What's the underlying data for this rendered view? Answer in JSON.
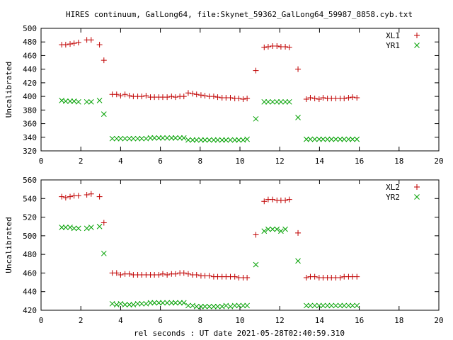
{
  "title": "HIRES continuum, GalLong64, file:Skynet_59362_GalLong64_59987_8858.cyb.txt",
  "xlabel": "rel seconds : UT date 2021-05-28T02:40:59.310",
  "colors": {
    "plus": "#c00000",
    "cross": "#00a000"
  },
  "chart_data": [
    {
      "type": "scatter",
      "ylabel": "Uncalibrated",
      "xlim": [
        0,
        20
      ],
      "ylim": [
        320,
        500
      ],
      "xticks": [
        0,
        2,
        4,
        6,
        8,
        10,
        12,
        14,
        16,
        18,
        20
      ],
      "yticks": [
        320,
        340,
        360,
        380,
        400,
        420,
        440,
        460,
        480,
        500
      ],
      "x": [
        0.82,
        1.04,
        1.24,
        1.46,
        1.66,
        1.88,
        2.1,
        2.3,
        2.52,
        2.72,
        2.94,
        3.16,
        3.38,
        3.58,
        3.8,
        4.0,
        4.22,
        4.44,
        4.64,
        4.86,
        5.06,
        5.28,
        5.5,
        5.7,
        5.92,
        6.12,
        6.34,
        6.56,
        6.76,
        6.98,
        7.18,
        7.4,
        7.62,
        7.82,
        8.04,
        8.24,
        8.46,
        8.68,
        8.88,
        9.1,
        9.3,
        9.52,
        9.74,
        9.94,
        10.16,
        10.36,
        10.58,
        10.8,
        11.0,
        11.22,
        11.42,
        11.64,
        11.86,
        12.06,
        12.28,
        12.48,
        12.7,
        12.92,
        13.12,
        13.34,
        13.54,
        13.76,
        13.98,
        14.18,
        14.4,
        14.6,
        14.82,
        15.04,
        15.24,
        15.46,
        15.66,
        15.88,
        16.1,
        16.3,
        16.52,
        16.72,
        16.94,
        17.16,
        17.36,
        17.58,
        17.78,
        18.0,
        18.22,
        18.42,
        18.64,
        18.84,
        19.06,
        19.28,
        19.48
      ],
      "series": [
        {
          "name": "XL1",
          "marker": "plus",
          "values": [
            null,
            476,
            476,
            477,
            478,
            479,
            null,
            483,
            483,
            null,
            476,
            453,
            null,
            403,
            403,
            401,
            403,
            401,
            400,
            400,
            400,
            401,
            399,
            399,
            399,
            399,
            399,
            400,
            399,
            400,
            400,
            405,
            404,
            403,
            402,
            401,
            400,
            400,
            399,
            398,
            398,
            398,
            397,
            397,
            396,
            397,
            null,
            438,
            null,
            472,
            473,
            474,
            474,
            473,
            473,
            472,
            null,
            440,
            null,
            396,
            398,
            397,
            396,
            398,
            397,
            397,
            397,
            397,
            397,
            398,
            399,
            398,
            null,
            null,
            null,
            null,
            null,
            null,
            null,
            null,
            null,
            null,
            null,
            null,
            null,
            null,
            null,
            null,
            null
          ]
        },
        {
          "name": "YR1",
          "marker": "cross",
          "values": [
            null,
            394,
            393,
            393,
            393,
            392,
            null,
            392,
            392,
            null,
            394,
            374,
            null,
            338,
            338,
            338,
            338,
            338,
            338,
            338,
            338,
            338,
            339,
            339,
            339,
            339,
            339,
            339,
            339,
            339,
            339,
            336,
            336,
            336,
            336,
            336,
            336,
            336,
            336,
            336,
            336,
            336,
            336,
            336,
            336,
            337,
            null,
            367,
            null,
            392,
            392,
            392,
            392,
            392,
            392,
            392,
            null,
            369,
            null,
            337,
            337,
            337,
            337,
            337,
            337,
            337,
            337,
            337,
            337,
            337,
            337,
            337,
            null,
            null,
            null,
            null,
            null,
            null,
            null,
            null,
            null,
            null,
            null,
            null,
            null,
            null,
            null,
            null,
            null
          ]
        }
      ]
    },
    {
      "type": "scatter",
      "ylabel": "Uncalibrated",
      "xlim": [
        0,
        20
      ],
      "ylim": [
        420,
        560
      ],
      "xticks": [
        0,
        2,
        4,
        6,
        8,
        10,
        12,
        14,
        16,
        18,
        20
      ],
      "yticks": [
        420,
        440,
        460,
        480,
        500,
        520,
        540,
        560
      ],
      "series": [
        {
          "name": "XL2",
          "marker": "plus",
          "values": [
            null,
            542,
            541,
            542,
            543,
            543,
            null,
            544,
            545,
            null,
            542,
            514,
            null,
            460,
            460,
            458,
            459,
            459,
            458,
            458,
            458,
            458,
            458,
            458,
            458,
            459,
            458,
            459,
            459,
            460,
            460,
            459,
            458,
            458,
            457,
            457,
            457,
            456,
            456,
            456,
            456,
            456,
            456,
            455,
            455,
            455,
            null,
            501,
            null,
            537,
            539,
            539,
            538,
            538,
            538,
            539,
            null,
            503,
            null,
            455,
            456,
            456,
            455,
            455,
            455,
            455,
            455,
            455,
            456,
            456,
            456,
            456,
            null,
            null,
            null,
            null,
            null,
            null,
            null,
            null,
            null,
            null,
            null,
            null,
            null,
            null,
            null,
            null,
            null
          ]
        },
        {
          "name": "YR2",
          "marker": "cross",
          "values": [
            null,
            509,
            509,
            509,
            508,
            508,
            null,
            508,
            509,
            null,
            510,
            481,
            null,
            427,
            426,
            427,
            426,
            426,
            426,
            427,
            427,
            427,
            428,
            428,
            428,
            428,
            428,
            428,
            428,
            428,
            428,
            425,
            425,
            424,
            424,
            424,
            424,
            424,
            424,
            424,
            425,
            424,
            425,
            425,
            425,
            425,
            null,
            469,
            null,
            505,
            507,
            507,
            507,
            505,
            507,
            null,
            null,
            473,
            null,
            425,
            425,
            425,
            425,
            425,
            425,
            425,
            425,
            425,
            425,
            425,
            425,
            425,
            null,
            null,
            null,
            null,
            null,
            null,
            null,
            null,
            null,
            null,
            null,
            null,
            null,
            null,
            null,
            null,
            null
          ]
        }
      ]
    }
  ]
}
